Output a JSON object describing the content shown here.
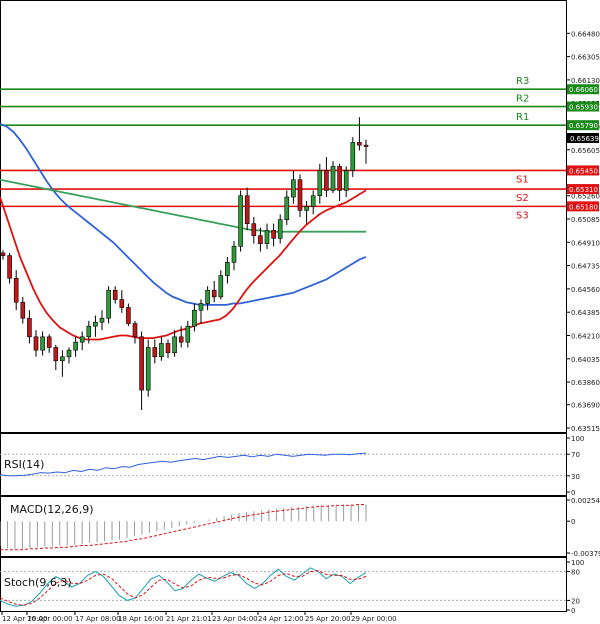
{
  "chart_data": [
    {
      "type": "candlestick",
      "title": "",
      "price_ticks": [
        "0.66480",
        "0.66305",
        "0.66130",
        "0.65955",
        "0.65780",
        "0.65605",
        "0.65435",
        "0.65260",
        "0.65085",
        "0.64910",
        "0.64735",
        "0.64560",
        "0.64385",
        "0.64210",
        "0.64035",
        "0.63860",
        "0.63690",
        "0.63515"
      ],
      "ylim": [
        0.635,
        0.6658
      ],
      "current_price": "0.65639",
      "levels": [
        {
          "name": "R3",
          "label": "R3",
          "value": 0.6606,
          "price_label": "0.66060",
          "color": "#1a8a1a"
        },
        {
          "name": "R2",
          "label": "R2",
          "value": 0.6593,
          "price_label": "0.65930",
          "color": "#1a8a1a"
        },
        {
          "name": "R1",
          "label": "R1",
          "value": 0.6579,
          "price_label": "0.65790",
          "color": "#1a8a1a"
        },
        {
          "name": "S1",
          "label": "S1",
          "value": 0.6545,
          "price_label": "0.65450",
          "color": "#e01010"
        },
        {
          "name": "S2",
          "label": "S2",
          "value": 0.6531,
          "price_label": "0.65310",
          "color": "#e01010"
        },
        {
          "name": "S3",
          "label": "S3",
          "value": 0.6518,
          "price_label": "0.65180",
          "color": "#e01010"
        }
      ],
      "x_labels": [
        "12 Apr 20:00",
        "16 Apr 00:00",
        "17 Apr 08:00",
        "18 Apr 16:00",
        "21 Apr 21:01",
        "23 Apr 04:00",
        "24 Apr 12:00",
        "25 Apr 20:00",
        "29 Apr 00:00"
      ],
      "candles": [
        [
          0.6483,
          0.6485,
          0.6478,
          0.6481
        ],
        [
          0.6481,
          0.6483,
          0.646,
          0.6464
        ],
        [
          0.6464,
          0.647,
          0.644,
          0.6446
        ],
        [
          0.6446,
          0.645,
          0.643,
          0.6434
        ],
        [
          0.6434,
          0.644,
          0.6415,
          0.642
        ],
        [
          0.642,
          0.6425,
          0.6405,
          0.641
        ],
        [
          0.641,
          0.6424,
          0.6406,
          0.642
        ],
        [
          0.642,
          0.6422,
          0.6408,
          0.6412
        ],
        [
          0.6412,
          0.6414,
          0.6395,
          0.6402
        ],
        [
          0.6402,
          0.641,
          0.639,
          0.6405
        ],
        [
          0.6405,
          0.6412,
          0.64,
          0.641
        ],
        [
          0.641,
          0.642,
          0.6405,
          0.6416
        ],
        [
          0.6416,
          0.6424,
          0.641,
          0.642
        ],
        [
          0.642,
          0.6432,
          0.6415,
          0.6428
        ],
        [
          0.6428,
          0.6436,
          0.642,
          0.6431
        ],
        [
          0.6431,
          0.644,
          0.6425,
          0.6434
        ],
        [
          0.6434,
          0.6458,
          0.643,
          0.6455
        ],
        [
          0.6455,
          0.6458,
          0.6445,
          0.6448
        ],
        [
          0.6448,
          0.6455,
          0.6438,
          0.6442
        ],
        [
          0.6442,
          0.6445,
          0.6428,
          0.643
        ],
        [
          0.643,
          0.6432,
          0.6415,
          0.642
        ],
        [
          0.642,
          0.6424,
          0.6365,
          0.638
        ],
        [
          0.638,
          0.6418,
          0.6375,
          0.6412
        ],
        [
          0.6412,
          0.6418,
          0.64,
          0.6405
        ],
        [
          0.6405,
          0.642,
          0.6402,
          0.6415
        ],
        [
          0.6415,
          0.6418,
          0.6404,
          0.6408
        ],
        [
          0.6408,
          0.6425,
          0.6405,
          0.642
        ],
        [
          0.642,
          0.6428,
          0.6412,
          0.6416
        ],
        [
          0.6416,
          0.6432,
          0.6412,
          0.6428
        ],
        [
          0.6428,
          0.6445,
          0.6424,
          0.644
        ],
        [
          0.644,
          0.6448,
          0.643,
          0.6445
        ],
        [
          0.6445,
          0.6458,
          0.644,
          0.6455
        ],
        [
          0.6455,
          0.6462,
          0.6446,
          0.645
        ],
        [
          0.645,
          0.647,
          0.6448,
          0.6466
        ],
        [
          0.6466,
          0.648,
          0.646,
          0.6476
        ],
        [
          0.6476,
          0.6492,
          0.647,
          0.6488
        ],
        [
          0.6488,
          0.653,
          0.6484,
          0.6526
        ],
        [
          0.6526,
          0.6532,
          0.65,
          0.6505
        ],
        [
          0.6505,
          0.651,
          0.649,
          0.6496
        ],
        [
          0.6496,
          0.6502,
          0.6484,
          0.649
        ],
        [
          0.649,
          0.6505,
          0.6486,
          0.65
        ],
        [
          0.65,
          0.6505,
          0.6488,
          0.6494
        ],
        [
          0.6494,
          0.6512,
          0.649,
          0.6508
        ],
        [
          0.6508,
          0.653,
          0.6504,
          0.6525
        ],
        [
          0.6525,
          0.6545,
          0.652,
          0.6538
        ],
        [
          0.6538,
          0.6542,
          0.651,
          0.6515
        ],
        [
          0.6515,
          0.6522,
          0.6505,
          0.6518
        ],
        [
          0.6518,
          0.653,
          0.6512,
          0.6526
        ],
        [
          0.6526,
          0.655,
          0.652,
          0.6545
        ],
        [
          0.6545,
          0.6555,
          0.6525,
          0.653
        ],
        [
          0.653,
          0.6552,
          0.6528,
          0.6548
        ],
        [
          0.6548,
          0.655,
          0.6522,
          0.653
        ],
        [
          0.653,
          0.6548,
          0.6525,
          0.6545
        ],
        [
          0.6545,
          0.657,
          0.654,
          0.6566
        ],
        [
          0.6566,
          0.6585,
          0.656,
          0.6564
        ],
        [
          0.6564,
          0.6568,
          0.655,
          0.6563
        ]
      ],
      "sma_red": [
        0.6525,
        0.651,
        0.6495,
        0.648,
        0.6468,
        0.6456,
        0.6446,
        0.6438,
        0.6432,
        0.6427,
        0.6424,
        0.6421,
        0.6419,
        0.6418,
        0.6418,
        0.6418,
        0.6419,
        0.642,
        0.6421,
        0.6421,
        0.642,
        0.6419,
        0.6419,
        0.6419,
        0.642,
        0.6421,
        0.6423,
        0.6425,
        0.6426,
        0.6428,
        0.643,
        0.6431,
        0.6432,
        0.6433,
        0.6436,
        0.6441,
        0.6448,
        0.6455,
        0.6461,
        0.6466,
        0.6471,
        0.6476,
        0.6481,
        0.6487,
        0.6493,
        0.6499,
        0.6504,
        0.6508,
        0.6512,
        0.6515,
        0.6517,
        0.6519,
        0.6521,
        0.6524,
        0.6527,
        0.653
      ],
      "sma_green": [
        0.6538,
        0.6537,
        0.6536,
        0.6535,
        0.6534,
        0.6533,
        0.6532,
        0.6531,
        0.653,
        0.6529,
        0.6528,
        0.6527,
        0.6526,
        0.6525,
        0.6524,
        0.6523,
        0.6522,
        0.6521,
        0.652,
        0.6519,
        0.6518,
        0.6517,
        0.6516,
        0.6515,
        0.6514,
        0.6513,
        0.6512,
        0.6511,
        0.651,
        0.6509,
        0.6508,
        0.6507,
        0.6506,
        0.6505,
        0.6504,
        0.6503,
        0.6502,
        0.6501,
        0.65,
        0.65,
        0.6499,
        0.6499,
        0.6499,
        0.6499,
        0.6499,
        0.6499,
        0.6499,
        0.6499,
        0.6499,
        0.6499,
        0.6499,
        0.6499,
        0.6499,
        0.6499,
        0.6499,
        0.6499
      ],
      "sma_blue": [
        0.658,
        0.6578,
        0.6574,
        0.6568,
        0.6561,
        0.6553,
        0.6545,
        0.6537,
        0.653,
        0.6524,
        0.6519,
        0.6515,
        0.6511,
        0.6507,
        0.6503,
        0.6499,
        0.6495,
        0.6491,
        0.6486,
        0.6481,
        0.6476,
        0.6471,
        0.6466,
        0.6461,
        0.6457,
        0.6453,
        0.645,
        0.6448,
        0.6446,
        0.6445,
        0.6444,
        0.6444,
        0.6444,
        0.6444,
        0.6444,
        0.6445,
        0.6445,
        0.6446,
        0.6447,
        0.6448,
        0.6449,
        0.645,
        0.6451,
        0.6452,
        0.6453,
        0.6455,
        0.6457,
        0.6459,
        0.6461,
        0.6463,
        0.6466,
        0.6469,
        0.6472,
        0.6475,
        0.6478,
        0.648
      ]
    },
    {
      "type": "line",
      "name": "RSI(14)",
      "ticks": [
        "100",
        "70",
        "30",
        "0"
      ],
      "ylim": [
        0,
        100
      ],
      "values": [
        32,
        30,
        30,
        31,
        33,
        36,
        35,
        37,
        36,
        40,
        38,
        42,
        40,
        45,
        43,
        47,
        46,
        51,
        53,
        55,
        57,
        55,
        58,
        60,
        62,
        60,
        63,
        66,
        64,
        66,
        68,
        65,
        68,
        66,
        70,
        68,
        66,
        68,
        70,
        69,
        68,
        70,
        70,
        69,
        71,
        72
      ]
    },
    {
      "type": "bar",
      "name": "MACD(12,26,9)",
      "ticks": [
        "0.002541",
        "0",
        "-0.003799"
      ],
      "ylim": [
        -0.003799,
        0.002541
      ],
      "histogram": [
        -0.003,
        -0.0032,
        -0.0033,
        -0.0033,
        -0.0032,
        -0.0031,
        -0.003,
        -0.003,
        -0.0029,
        -0.0029,
        -0.0028,
        -0.0027,
        -0.0026,
        -0.0025,
        -0.0024,
        -0.0023,
        -0.0022,
        -0.002,
        -0.0018,
        -0.0016,
        -0.0014,
        -0.0012,
        -0.001,
        -0.0008,
        -0.0006,
        -0.0004,
        -0.0002,
        0.0,
        0.0002,
        0.0004,
        0.0006,
        0.0008,
        0.001,
        0.0011,
        0.0012,
        0.0013,
        0.0014,
        0.0015,
        0.0016,
        0.0017,
        0.0017,
        0.0018,
        0.0018,
        0.0019,
        0.0019,
        0.0019,
        0.002,
        0.002,
        0.002,
        0.002
      ],
      "signal": [
        -0.0034,
        -0.0034,
        -0.0034,
        -0.0034,
        -0.0033,
        -0.0033,
        -0.0032,
        -0.0032,
        -0.0031,
        -0.0031,
        -0.003,
        -0.0029,
        -0.0029,
        -0.0028,
        -0.0027,
        -0.0026,
        -0.0025,
        -0.0024,
        -0.0022,
        -0.0021,
        -0.0019,
        -0.0017,
        -0.0015,
        -0.0013,
        -0.0011,
        -0.0009,
        -0.0007,
        -0.0005,
        -0.0003,
        -0.0001,
        0.0001,
        0.0003,
        0.0005,
        0.0006,
        0.0008,
        0.0009,
        0.0011,
        0.0012,
        0.0013,
        0.0014,
        0.0015,
        0.0016,
        0.0017,
        0.0018,
        0.0018,
        0.0019,
        0.0019,
        0.0019,
        0.002,
        0.002
      ]
    },
    {
      "type": "line",
      "name": "Stoch(9,6,3)",
      "ticks": [
        "100",
        "80",
        "20",
        "0"
      ],
      "ylim": [
        0,
        100
      ],
      "main": [
        20,
        12,
        8,
        10,
        18,
        35,
        55,
        70,
        60,
        48,
        55,
        72,
        80,
        70,
        50,
        30,
        20,
        25,
        45,
        65,
        72,
        58,
        40,
        45,
        62,
        75,
        66,
        60,
        70,
        78,
        72,
        55,
        45,
        55,
        72,
        85,
        70,
        62,
        75,
        88,
        80,
        65,
        75,
        70,
        55,
        68,
        78
      ],
      "signal": [
        25,
        18,
        12,
        10,
        14,
        25,
        40,
        56,
        62,
        56,
        55,
        62,
        72,
        75,
        66,
        50,
        34,
        25,
        32,
        48,
        62,
        64,
        54,
        46,
        50,
        62,
        68,
        66,
        66,
        72,
        74,
        66,
        56,
        52,
        60,
        72,
        76,
        70,
        70,
        80,
        82,
        74,
        72,
        72,
        64,
        64,
        70
      ]
    }
  ]
}
